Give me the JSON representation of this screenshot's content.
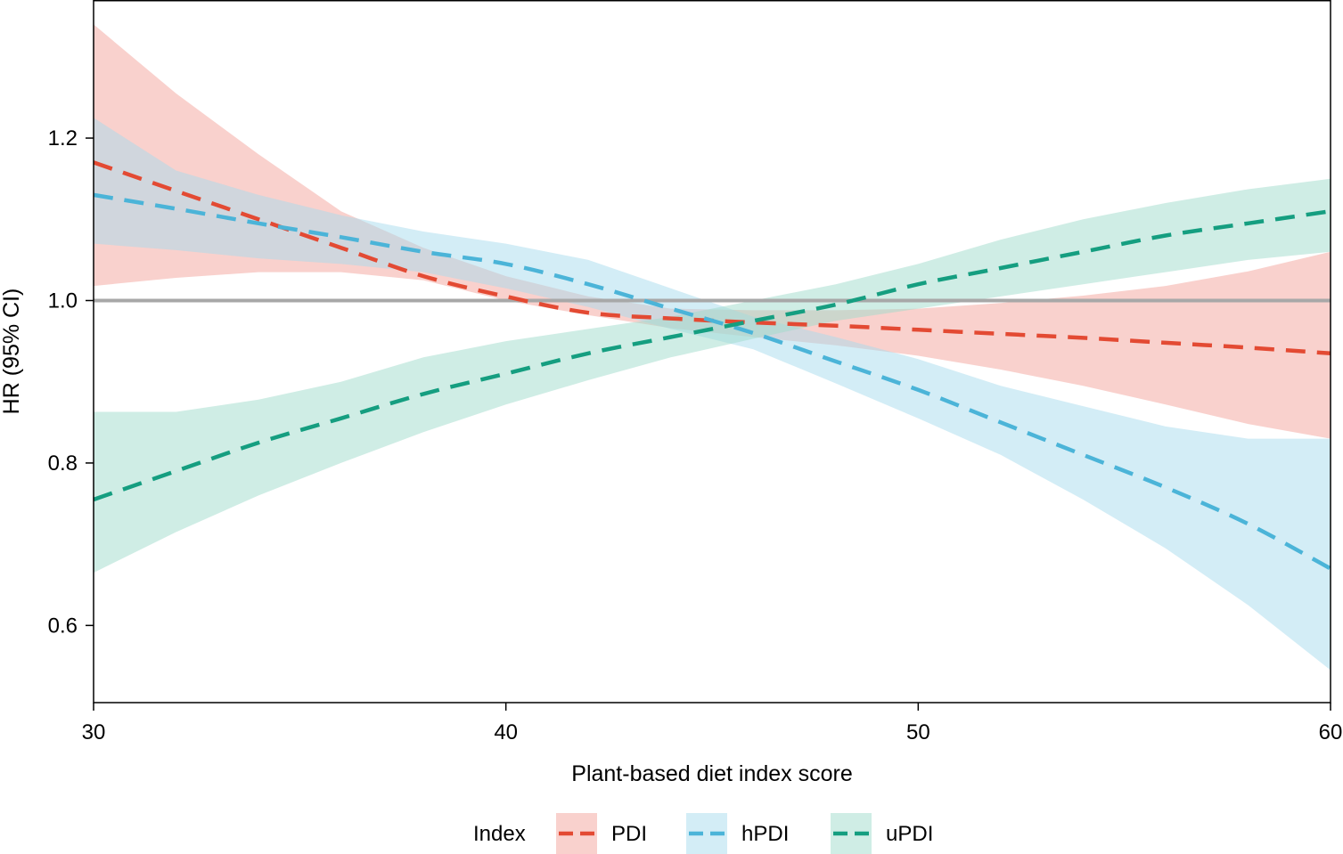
{
  "chart_data": {
    "type": "line",
    "xlabel": "Plant-based diet index score",
    "ylabel": "HR (95% CI)",
    "xlim": [
      30,
      60
    ],
    "ylim": [
      0.505,
      1.37
    ],
    "xticks": [
      30,
      40,
      50,
      60
    ],
    "yticks": [
      0.6,
      0.8,
      1.0,
      1.2
    ],
    "ytick_labels": [
      "0.6",
      "0.8",
      "1.0",
      "1.2"
    ],
    "reference_line": 1.0,
    "legend": {
      "title": "Index",
      "placement": "bottom"
    },
    "series": [
      {
        "name": "PDI",
        "line_color": "#e34a33",
        "band_color": "#f4a49c",
        "x": [
          30,
          32,
          34,
          36,
          38,
          40,
          42,
          44,
          46,
          48,
          50,
          52,
          54,
          56,
          58,
          60
        ],
        "y": [
          1.17,
          1.135,
          1.1,
          1.065,
          1.03,
          1.005,
          0.985,
          0.978,
          0.973,
          0.969,
          0.964,
          0.959,
          0.954,
          0.948,
          0.942,
          0.935
        ],
        "lower": [
          1.018,
          1.028,
          1.035,
          1.035,
          1.025,
          1.0,
          0.982,
          0.966,
          0.955,
          0.945,
          0.932,
          0.915,
          0.895,
          0.872,
          0.848,
          0.83
        ],
        "upper": [
          1.34,
          1.255,
          1.18,
          1.11,
          1.065,
          1.03,
          1.005,
          0.99,
          0.988,
          0.988,
          0.99,
          0.997,
          1.006,
          1.018,
          1.036,
          1.06
        ]
      },
      {
        "name": "hPDI",
        "line_color": "#4bb4d8",
        "band_color": "#a8dcee",
        "x": [
          30,
          32,
          34,
          36,
          38,
          40,
          42,
          44,
          46,
          48,
          50,
          52,
          54,
          56,
          58,
          60
        ],
        "y": [
          1.13,
          1.113,
          1.095,
          1.078,
          1.06,
          1.045,
          1.02,
          0.99,
          0.96,
          0.925,
          0.89,
          0.85,
          0.81,
          0.77,
          0.725,
          0.67
        ],
        "lower": [
          1.07,
          1.062,
          1.052,
          1.045,
          1.035,
          1.015,
          0.992,
          0.965,
          0.94,
          0.898,
          0.855,
          0.81,
          0.755,
          0.695,
          0.625,
          0.545
        ],
        "upper": [
          1.225,
          1.16,
          1.13,
          1.105,
          1.085,
          1.07,
          1.05,
          1.015,
          0.98,
          0.955,
          0.928,
          0.895,
          0.87,
          0.845,
          0.83,
          0.83
        ]
      },
      {
        "name": "uPDI",
        "line_color": "#159e80",
        "band_color": "#9fdccb",
        "x": [
          30,
          32,
          34,
          36,
          38,
          40,
          42,
          44,
          46,
          48,
          50,
          52,
          54,
          56,
          58,
          60
        ],
        "y": [
          0.755,
          0.79,
          0.825,
          0.855,
          0.885,
          0.91,
          0.935,
          0.955,
          0.975,
          0.995,
          1.02,
          1.04,
          1.06,
          1.08,
          1.095,
          1.11
        ],
        "lower": [
          0.665,
          0.715,
          0.76,
          0.8,
          0.838,
          0.872,
          0.902,
          0.93,
          0.953,
          0.975,
          0.99,
          1.005,
          1.02,
          1.035,
          1.05,
          1.06
        ],
        "upper": [
          0.863,
          0.863,
          0.878,
          0.9,
          0.93,
          0.95,
          0.965,
          0.98,
          1.0,
          1.02,
          1.045,
          1.075,
          1.1,
          1.12,
          1.137,
          1.15
        ]
      }
    ]
  }
}
